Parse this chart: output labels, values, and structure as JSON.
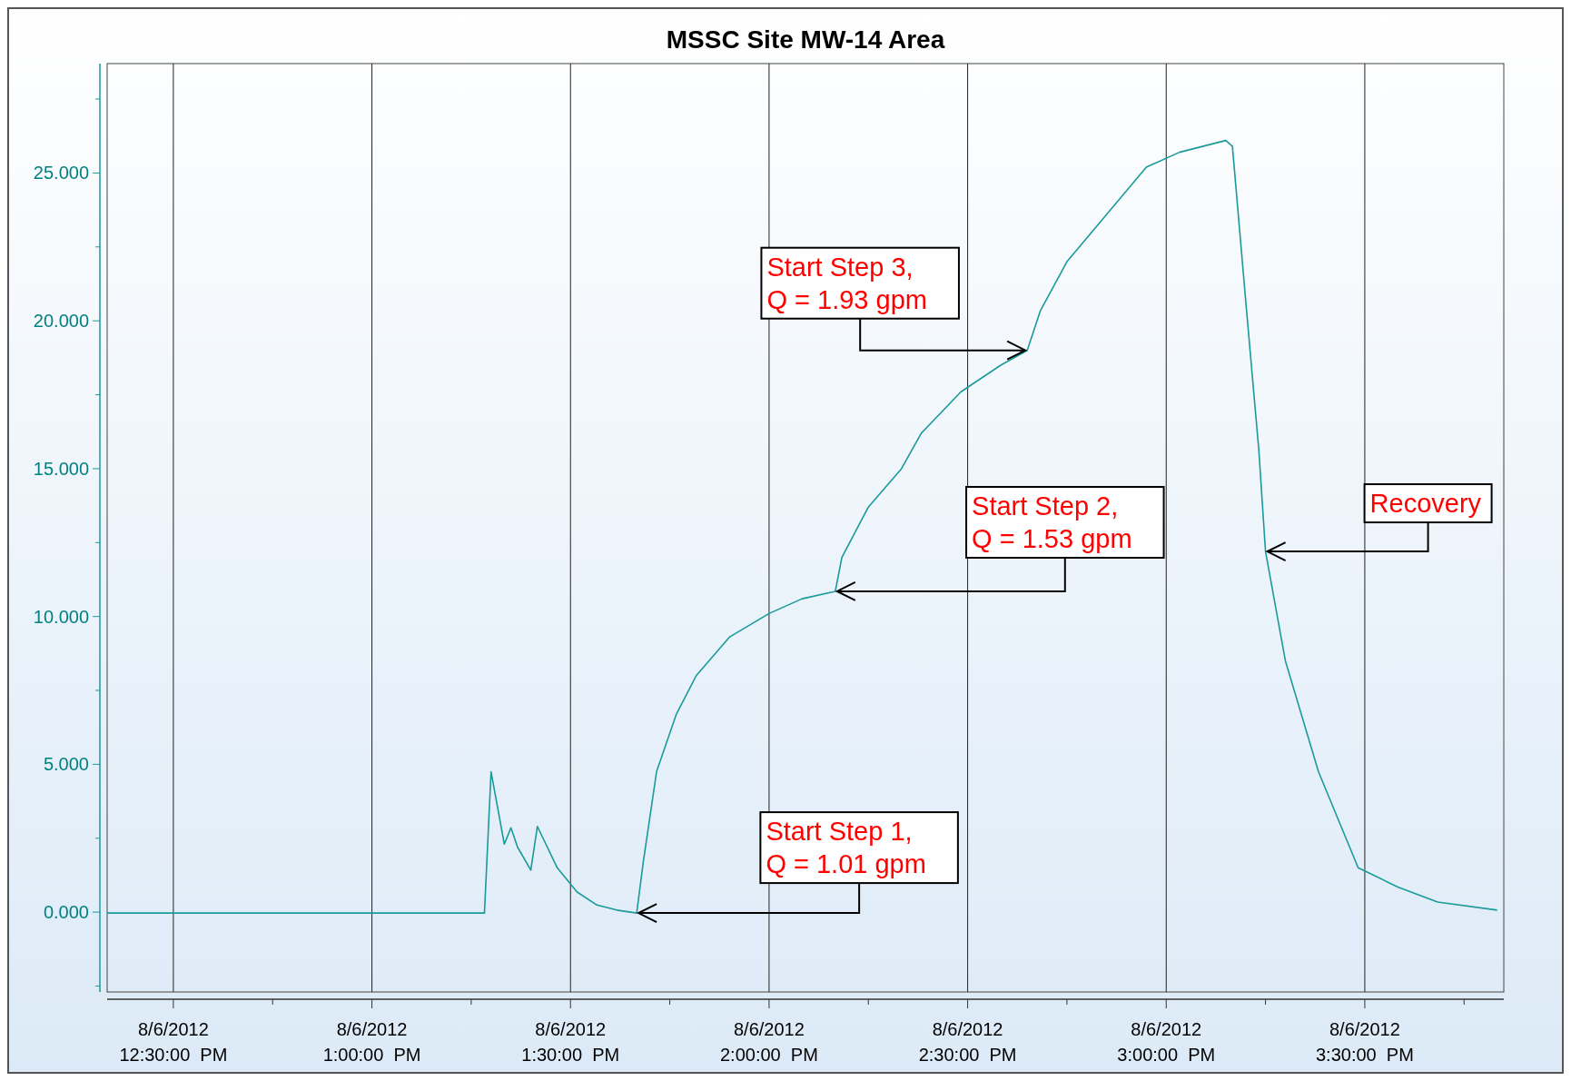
{
  "chart_data": {
    "type": "line",
    "title": "MSSC Site MW-14 Area",
    "x": [
      "2012-08-06T12:20",
      "2012-08-06T12:49",
      "2012-08-06T13:17",
      "2012-08-06T13:18",
      "2012-08-06T13:20",
      "2012-08-06T13:21",
      "2012-08-06T13:22",
      "2012-08-06T13:24",
      "2012-08-06T13:25",
      "2012-08-06T13:28",
      "2012-08-06T13:31",
      "2012-08-06T13:34",
      "2012-08-06T13:37",
      "2012-08-06T13:40",
      "2012-08-06T13:41",
      "2012-08-06T13:43",
      "2012-08-06T13:46",
      "2012-08-06T13:49",
      "2012-08-06T13:54",
      "2012-08-06T14:00",
      "2012-08-06T14:05",
      "2012-08-06T14:10",
      "2012-08-06T14:11",
      "2012-08-06T14:15",
      "2012-08-06T14:20",
      "2012-08-06T14:23",
      "2012-08-06T14:29",
      "2012-08-06T14:35",
      "2012-08-06T14:39",
      "2012-08-06T14:41",
      "2012-08-06T14:45",
      "2012-08-06T14:51",
      "2012-08-06T14:57",
      "2012-08-06T15:02",
      "2012-08-06T15:09",
      "2012-08-06T15:10",
      "2012-08-06T15:12",
      "2012-08-06T15:14",
      "2012-08-06T15:15",
      "2012-08-06T15:18",
      "2012-08-06T15:23",
      "2012-08-06T15:29",
      "2012-08-06T15:35",
      "2012-08-06T15:41",
      "2012-08-06T15:50"
    ],
    "series": [
      {
        "color": "#1a9a9a",
        "values": [
          -0.03,
          -0.03,
          -0.03,
          4.75,
          2.3,
          2.85,
          2.2,
          1.42,
          2.9,
          1.5,
          0.68,
          0.24,
          0.07,
          -0.03,
          1.7,
          4.75,
          6.7,
          8.0,
          9.3,
          10.1,
          10.6,
          10.85,
          12.0,
          13.7,
          15.0,
          16.2,
          17.6,
          18.5,
          19.0,
          20.35,
          22.0,
          23.6,
          25.2,
          25.7,
          26.1,
          25.9,
          20.7,
          15.6,
          12.2,
          8.5,
          4.75,
          1.5,
          0.85,
          0.34,
          0.07
        ]
      }
    ],
    "xlim": [
      "2012-08-06T12:20",
      "2012-08-06T15:51"
    ],
    "ylim": [
      -2.7,
      28.7
    ],
    "xticks": [
      {
        "value": "2012-08-06T12:30",
        "label": "8/6/2012\n12:30:00  PM"
      },
      {
        "value": "2012-08-06T12:45",
        "label": null
      },
      {
        "value": "2012-08-06T13:00",
        "label": "8/6/2012\n1:00:00  PM"
      },
      {
        "value": "2012-08-06T13:15",
        "label": null
      },
      {
        "value": "2012-08-06T13:30",
        "label": "8/6/2012\n1:30:00  PM"
      },
      {
        "value": "2012-08-06T13:45",
        "label": null
      },
      {
        "value": "2012-08-06T14:00",
        "label": "8/6/2012\n2:00:00  PM"
      },
      {
        "value": "2012-08-06T14:15",
        "label": null
      },
      {
        "value": "2012-08-06T14:30",
        "label": "8/6/2012\n2:30:00  PM"
      },
      {
        "value": "2012-08-06T14:45",
        "label": null
      },
      {
        "value": "2012-08-06T15:00",
        "label": "8/6/2012\n3:00:00  PM"
      },
      {
        "value": "2012-08-06T15:15",
        "label": null
      },
      {
        "value": "2012-08-06T15:30",
        "label": "8/6/2012\n3:30:00  PM"
      },
      {
        "value": "2012-08-06T15:45",
        "label": null
      }
    ],
    "yticks": [
      {
        "value": -2.5,
        "label": null
      },
      {
        "value": 0,
        "label": "0.000"
      },
      {
        "value": 2.5,
        "label": null
      },
      {
        "value": 5,
        "label": "5.000"
      },
      {
        "value": 7.5,
        "label": null
      },
      {
        "value": 10,
        "label": "10.000"
      },
      {
        "value": 12.5,
        "label": null
      },
      {
        "value": 15,
        "label": "15.000"
      },
      {
        "value": 17.5,
        "label": null
      },
      {
        "value": 20,
        "label": "20.000"
      },
      {
        "value": 22.5,
        "label": null
      },
      {
        "value": 25,
        "label": "25.000"
      },
      {
        "value": 27.5,
        "label": null
      }
    ],
    "grid": "x",
    "marker": "none",
    "line_style": "solid",
    "annotations": [
      {
        "text": "Start Step 1, Q = 1.01 gpm",
        "x": "2012-08-06T13:40",
        "y": -0.03
      },
      {
        "text": "Start Step 2, Q = 1.53 gpm",
        "x": "2012-08-06T14:10",
        "y": 10.85
      },
      {
        "text": "Start Step 3, Q = 1.93 gpm",
        "x": "2012-08-06T14:39",
        "y": 19.0
      },
      {
        "text": "Recovery",
        "x": "2012-08-06T15:15",
        "y": 12.2
      }
    ]
  }
}
